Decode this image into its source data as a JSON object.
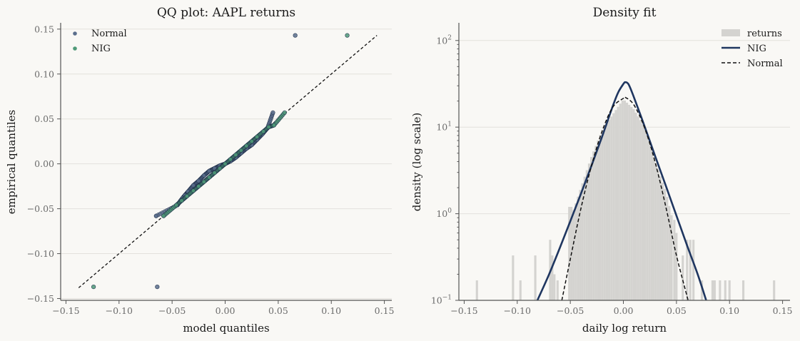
{
  "chart_data": [
    {
      "type": "scatter",
      "title": "QQ plot: AAPL returns",
      "xlabel": "model quantiles",
      "ylabel": "empirical quantiles",
      "xlim": [
        -0.155,
        0.157
      ],
      "ylim": [
        -0.152,
        0.157
      ],
      "xticks": [
        -0.15,
        -0.1,
        -0.05,
        0.0,
        0.05,
        0.1,
        0.15
      ],
      "xtick_labels": [
        "−0.15",
        "−0.10",
        "−0.05",
        "0.00",
        "0.05",
        "0.10",
        "0.15"
      ],
      "yticks": [
        -0.15,
        -0.1,
        -0.05,
        0.0,
        0.05,
        0.1,
        0.15
      ],
      "ytick_labels": [
        "−0.15",
        "−0.10",
        "−0.05",
        "0.00",
        "0.05",
        "0.10",
        "0.15"
      ],
      "grid": "y",
      "legend_position": "top-left",
      "reference_line": {
        "from": [
          -0.138,
          -0.138
        ],
        "to": [
          0.143,
          0.143
        ],
        "style": "dashed"
      },
      "series": [
        {
          "name": "Normal",
          "color": "#5a6e8c",
          "x": [
            -0.064,
            -0.065,
            -0.045,
            -0.042,
            -0.04,
            -0.038,
            -0.035,
            -0.03,
            -0.025,
            -0.02,
            -0.015,
            -0.01,
            -0.005,
            0.0,
            0.005,
            0.01,
            0.015,
            0.02,
            0.025,
            0.03,
            0.035,
            0.04,
            0.045,
            0.066
          ],
          "y": [
            -0.137,
            -0.058,
            -0.046,
            -0.041,
            -0.038,
            -0.035,
            -0.031,
            -0.024,
            -0.019,
            -0.013,
            -0.008,
            -0.005,
            -0.002,
            0.0,
            0.003,
            0.007,
            0.012,
            0.017,
            0.021,
            0.027,
            0.033,
            0.04,
            0.057,
            0.143
          ]
        },
        {
          "name": "NIG",
          "color": "#4f9a78",
          "x": [
            -0.124,
            -0.058,
            -0.046,
            -0.041,
            -0.036,
            -0.03,
            -0.025,
            -0.02,
            -0.015,
            -0.01,
            -0.005,
            0.0,
            0.005,
            0.01,
            0.015,
            0.02,
            0.025,
            0.03,
            0.036,
            0.041,
            0.046,
            0.056,
            0.115
          ],
          "y": [
            -0.137,
            -0.058,
            -0.046,
            -0.041,
            -0.036,
            -0.03,
            -0.025,
            -0.02,
            -0.015,
            -0.01,
            -0.005,
            0.0,
            0.005,
            0.01,
            0.015,
            0.02,
            0.025,
            0.03,
            0.036,
            0.041,
            0.043,
            0.057,
            0.143
          ]
        }
      ]
    },
    {
      "type": "histogram+line",
      "title": "Density fit",
      "xlabel": "daily log return",
      "ylabel": "density (log scale)",
      "y_scale": "log",
      "xlim": [
        -0.155,
        0.157
      ],
      "ylim": [
        0.1,
        160
      ],
      "xticks": [
        -0.15,
        -0.1,
        -0.05,
        0.0,
        0.05,
        0.1,
        0.15
      ],
      "xtick_labels": [
        "−0.15",
        "−0.10",
        "−0.05",
        "0.00",
        "0.05",
        "0.10",
        "0.15"
      ],
      "yticks": [
        0.1,
        1,
        10,
        100
      ],
      "ytick_labels": [
        {
          "base": "10",
          "exp": "−1"
        },
        {
          "base": "10",
          "exp": "0"
        },
        {
          "base": "10",
          "exp": "1"
        },
        {
          "base": "10",
          "exp": "2"
        }
      ],
      "grid": "y",
      "legend_position": "top-right",
      "histogram": {
        "name": "returns",
        "color": "#d4d3d0",
        "bin_width": 0.0021,
        "bins": [
          {
            "x": -0.138,
            "h": 0.17
          },
          {
            "x": -0.104,
            "h": 0.33
          },
          {
            "x": -0.097,
            "h": 0.17
          },
          {
            "x": -0.083,
            "h": 0.33
          },
          {
            "x": -0.069,
            "h": 0.5
          },
          {
            "x": -0.067,
            "h": 0.33
          },
          {
            "x": -0.065,
            "h": 0.2
          },
          {
            "x": -0.062,
            "h": 0.17
          },
          {
            "x": -0.051,
            "h": 1.2
          },
          {
            "x": -0.049,
            "h": 1.2
          }
        ],
        "body": {
          "x": [
            -0.047,
            -0.04,
            -0.03,
            -0.02,
            -0.01,
            0.0,
            0.01,
            0.02,
            0.03,
            0.04,
            0.046
          ],
          "h": [
            1.1,
            2.0,
            4.6,
            9.2,
            14.0,
            21.0,
            16.0,
            10.0,
            4.0,
            1.8,
            0.9
          ]
        },
        "right_bins": [
          {
            "x": 0.048,
            "h": 0.85
          },
          {
            "x": 0.05,
            "h": 0.6
          },
          {
            "x": 0.056,
            "h": 0.33
          },
          {
            "x": 0.06,
            "h": 0.5
          },
          {
            "x": 0.063,
            "h": 0.5
          },
          {
            "x": 0.066,
            "h": 0.5
          },
          {
            "x": 0.074,
            "h": 0.17
          },
          {
            "x": 0.084,
            "h": 0.17
          },
          {
            "x": 0.086,
            "h": 0.17
          },
          {
            "x": 0.091,
            "h": 0.17
          },
          {
            "x": 0.096,
            "h": 0.17
          },
          {
            "x": 0.1,
            "h": 0.17
          },
          {
            "x": 0.113,
            "h": 0.17
          },
          {
            "x": 0.142,
            "h": 0.17
          }
        ]
      },
      "series": [
        {
          "name": "NIG",
          "color": "#1f3660",
          "style": "solid",
          "x": [
            -0.081,
            -0.07,
            -0.06,
            -0.05,
            -0.04,
            -0.03,
            -0.02,
            -0.01,
            -0.005,
            0.0,
            0.002,
            0.005,
            0.01,
            0.02,
            0.03,
            0.04,
            0.05,
            0.06,
            0.07,
            0.078
          ],
          "y": [
            0.1,
            0.2,
            0.4,
            0.82,
            1.7,
            3.6,
            7.8,
            17.5,
            25.0,
            31.5,
            33.0,
            31.0,
            22.0,
            10.2,
            4.6,
            2.1,
            0.95,
            0.43,
            0.2,
            0.1
          ]
        },
        {
          "name": "Normal",
          "color": "#111111",
          "style": "dashed",
          "x": [
            -0.058,
            -0.05,
            -0.04,
            -0.03,
            -0.02,
            -0.01,
            0.0,
            0.002,
            0.01,
            0.02,
            0.03,
            0.04,
            0.05,
            0.061
          ],
          "y": [
            0.1,
            0.3,
            1.15,
            3.6,
            9.0,
            17.0,
            21.5,
            22.0,
            18.0,
            9.8,
            3.9,
            1.2,
            0.33,
            0.1
          ]
        }
      ]
    }
  ]
}
